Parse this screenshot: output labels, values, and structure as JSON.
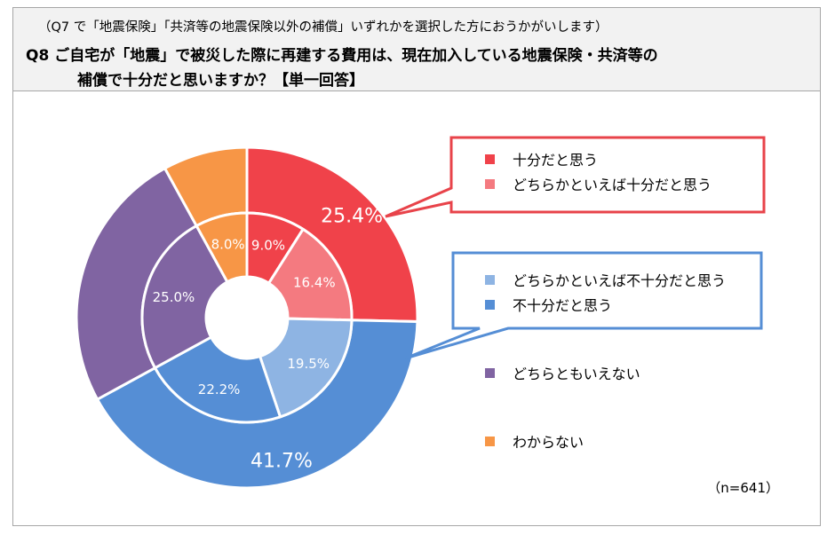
{
  "header": {
    "subnote": "（Q7 で「地震保険」「共済等の地震保険以外の補償」いずれかを選択した方におうかがいします）",
    "question_line1": "Q8  ご自宅が「地震」で被災した際に再建する費用は、現在加入している地震保険・共済等の",
    "question_line2": "補償で十分だと思いますか？【単一回答】"
  },
  "sample_size": "（n=641）",
  "colors": {
    "enough": "#f0424a",
    "somewhat_enough": "#f47a80",
    "somewhat_not_enough": "#8eb4e3",
    "not_enough": "#558ed5",
    "neither": "#8064a2",
    "unknown": "#f79646",
    "box_red": "#e8434a",
    "box_blue": "#558ed5"
  },
  "chart_data": {
    "type": "donut",
    "title": "",
    "inner_ring": {
      "categories": [
        "十分だと思う",
        "どちらかといえば十分だと思う",
        "どちらかといえば不十分だと思う",
        "不十分だと思う",
        "どちらともいえない",
        "わからない"
      ],
      "values": [
        9.0,
        16.4,
        19.5,
        22.2,
        25.0,
        8.0
      ],
      "labels": [
        "9.0%",
        "16.4%",
        "19.5%",
        "22.2%",
        "25.0%",
        "8.0%"
      ]
    },
    "outer_ring": {
      "categories": [
        "十分だと思う計",
        "不十分だと思う計",
        "どちらともいえない",
        "わからない"
      ],
      "values": [
        25.4,
        41.7,
        25.0,
        8.0
      ],
      "labels": [
        "25.4%",
        "41.7%",
        "",
        ""
      ]
    },
    "legend": {
      "groups": [
        {
          "box": "red",
          "items": [
            "十分だと思う",
            "どちらかといえば十分だと思う"
          ]
        },
        {
          "box": "blue",
          "items": [
            "どちらかといえば不十分だと思う",
            "不十分だと思う"
          ]
        },
        {
          "box": "none",
          "items": [
            "どちらともいえない"
          ]
        },
        {
          "box": "none",
          "items": [
            "わからない"
          ]
        }
      ],
      "placement": "right"
    }
  }
}
